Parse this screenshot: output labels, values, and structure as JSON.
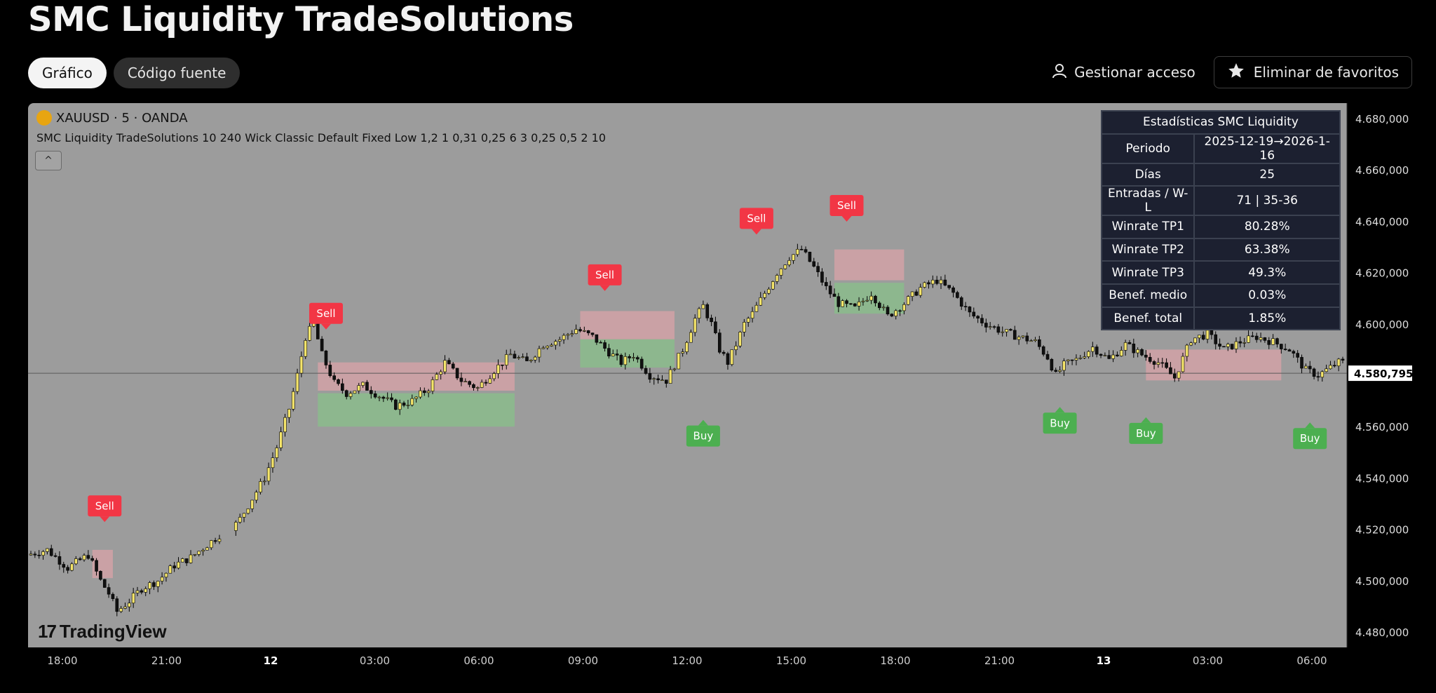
{
  "page": {
    "title": "SMC Liquidity TradeSolutions",
    "tabs": [
      {
        "label": "Gráfico",
        "active": true
      },
      {
        "label": "Código fuente",
        "active": false
      }
    ],
    "manage_access_label": "Gestionar acceso",
    "favorite_button_label": "Eliminar de favoritos"
  },
  "chart": {
    "symbol_label": "XAUUSD · 5 · OANDA",
    "indicator_label": "SMC Liquidity TradeSolutions 10 240 Wick Classic Default Fixed Low 1,2 1 0,31 0,25 6 3 0,25 0,5 2 10",
    "collapse_glyph": "^",
    "watermark": "TradingView",
    "current_price_label": "4.580,795",
    "colors": {
      "background": "#9c9c9c",
      "sell": "#f23645",
      "buy": "#4caf50",
      "zone_sell": "#d9a3a8",
      "zone_buy": "#88c089"
    }
  },
  "chart_data": {
    "type": "candlestick",
    "symbol": "XAUUSD",
    "timeframe": "5",
    "y_ticks": [
      "4.680,000",
      "4.660,000",
      "4.640,000",
      "4.620,000",
      "4.600,000",
      "4.580,000",
      "4.560,000",
      "4.540,000",
      "4.520,000",
      "4.500,000",
      "4.480,000"
    ],
    "y_tick_values": [
      4680,
      4660,
      4640,
      4620,
      4600,
      4580,
      4560,
      4540,
      4520,
      4500,
      4480
    ],
    "ylim": [
      4474,
      4686
    ],
    "x_ticks": [
      {
        "label": "18:00",
        "bold": false
      },
      {
        "label": "21:00",
        "bold": false
      },
      {
        "label": "12",
        "bold": true
      },
      {
        "label": "03:00",
        "bold": false
      },
      {
        "label": "06:00",
        "bold": false
      },
      {
        "label": "09:00",
        "bold": false
      },
      {
        "label": "12:00",
        "bold": false
      },
      {
        "label": "15:00",
        "bold": false
      },
      {
        "label": "18:00",
        "bold": false
      },
      {
        "label": "21:00",
        "bold": false
      },
      {
        "label": "13",
        "bold": true
      },
      {
        "label": "03:00",
        "bold": false
      },
      {
        "label": "06:00",
        "bold": false
      }
    ],
    "current_price": 4580.795,
    "price_path": [
      [
        0,
        4510
      ],
      [
        5,
        4512
      ],
      [
        10,
        4505
      ],
      [
        15,
        4510
      ],
      [
        18,
        4500
      ],
      [
        20,
        4495
      ],
      [
        22,
        4488
      ],
      [
        25,
        4492
      ],
      [
        28,
        4497
      ],
      [
        32,
        4500
      ],
      [
        36,
        4506
      ],
      [
        40,
        4509
      ],
      [
        44,
        4514
      ],
      [
        48,
        4519
      ],
      [
        50,
        4520
      ],
      [
        52,
        4524
      ],
      [
        55,
        4532
      ],
      [
        58,
        4540
      ],
      [
        61,
        4552
      ],
      [
        64,
        4567
      ],
      [
        66,
        4580
      ],
      [
        68,
        4595
      ],
      [
        70,
        4600
      ],
      [
        72,
        4588
      ],
      [
        75,
        4577
      ],
      [
        78,
        4573
      ],
      [
        82,
        4576
      ],
      [
        86,
        4572
      ],
      [
        90,
        4568
      ],
      [
        94,
        4570
      ],
      [
        98,
        4575
      ],
      [
        102,
        4585
      ],
      [
        106,
        4578
      ],
      [
        110,
        4575
      ],
      [
        114,
        4582
      ],
      [
        118,
        4588
      ],
      [
        122,
        4585
      ],
      [
        126,
        4592
      ],
      [
        130,
        4594
      ],
      [
        134,
        4598
      ],
      [
        138,
        4595
      ],
      [
        142,
        4589
      ],
      [
        145,
        4585
      ],
      [
        148,
        4588
      ],
      [
        152,
        4580
      ],
      [
        156,
        4578
      ],
      [
        160,
        4590
      ],
      [
        163,
        4602
      ],
      [
        165,
        4607
      ],
      [
        167,
        4600
      ],
      [
        169,
        4590
      ],
      [
        171,
        4585
      ],
      [
        173,
        4592
      ],
      [
        175,
        4600
      ],
      [
        177,
        4604
      ],
      [
        180,
        4612
      ],
      [
        183,
        4620
      ],
      [
        186,
        4626
      ],
      [
        189,
        4629
      ],
      [
        192,
        4622
      ],
      [
        195,
        4614
      ],
      [
        198,
        4608
      ],
      [
        202,
        4606
      ],
      [
        206,
        4612
      ],
      [
        210,
        4603
      ],
      [
        214,
        4608
      ],
      [
        218,
        4614
      ],
      [
        222,
        4617
      ],
      [
        226,
        4612
      ],
      [
        230,
        4604
      ],
      [
        234,
        4600
      ],
      [
        238,
        4597
      ],
      [
        242,
        4595
      ],
      [
        246,
        4593
      ],
      [
        249,
        4587
      ],
      [
        251,
        4580
      ],
      [
        253,
        4584
      ],
      [
        256,
        4586
      ],
      [
        260,
        4591
      ],
      [
        264,
        4586
      ],
      [
        268,
        4592
      ],
      [
        272,
        4588
      ],
      [
        276,
        4585
      ],
      [
        280,
        4579
      ],
      [
        284,
        4594
      ],
      [
        288,
        4596
      ],
      [
        292,
        4590
      ],
      [
        296,
        4593
      ],
      [
        300,
        4595
      ],
      [
        304,
        4593
      ],
      [
        308,
        4590
      ],
      [
        312,
        4582
      ],
      [
        315,
        4580
      ],
      [
        318,
        4583
      ],
      [
        320,
        4585
      ]
    ],
    "signals": [
      {
        "type": "Sell",
        "time_pos": 18.0,
        "price": 4519
      },
      {
        "type": "Sell",
        "time_pos": 72.0,
        "price": 4594
      },
      {
        "type": "Sell",
        "time_pos": 140.0,
        "price": 4609
      },
      {
        "type": "Sell",
        "time_pos": 177.0,
        "price": 4631
      },
      {
        "type": "Sell",
        "time_pos": 199.0,
        "price": 4636
      },
      {
        "type": "Buy",
        "time_pos": 164.0,
        "price": 4567
      },
      {
        "type": "Buy",
        "time_pos": 251.0,
        "price": 4572
      },
      {
        "type": "Buy",
        "time_pos": 272.0,
        "price": 4568
      },
      {
        "type": "Buy",
        "time_pos": 312.0,
        "price": 4566
      }
    ],
    "x_range": [
      0,
      320
    ]
  },
  "stats": {
    "header": "Estadísticas SMC Liquidity",
    "rows": [
      {
        "label": "Periodo",
        "value": "2025-12-19→2026-1-16"
      },
      {
        "label": "Días",
        "value": "25"
      },
      {
        "label": "Entradas / W-L",
        "value": "71  |  35-36"
      },
      {
        "label": "Winrate TP1",
        "value": "80.28%"
      },
      {
        "label": "Winrate TP2",
        "value": "63.38%"
      },
      {
        "label": "Winrate TP3",
        "value": "49.3%"
      },
      {
        "label": "Benef. medio",
        "value": "0.03%"
      },
      {
        "label": "Benef. total",
        "value": "1.85%"
      }
    ]
  }
}
